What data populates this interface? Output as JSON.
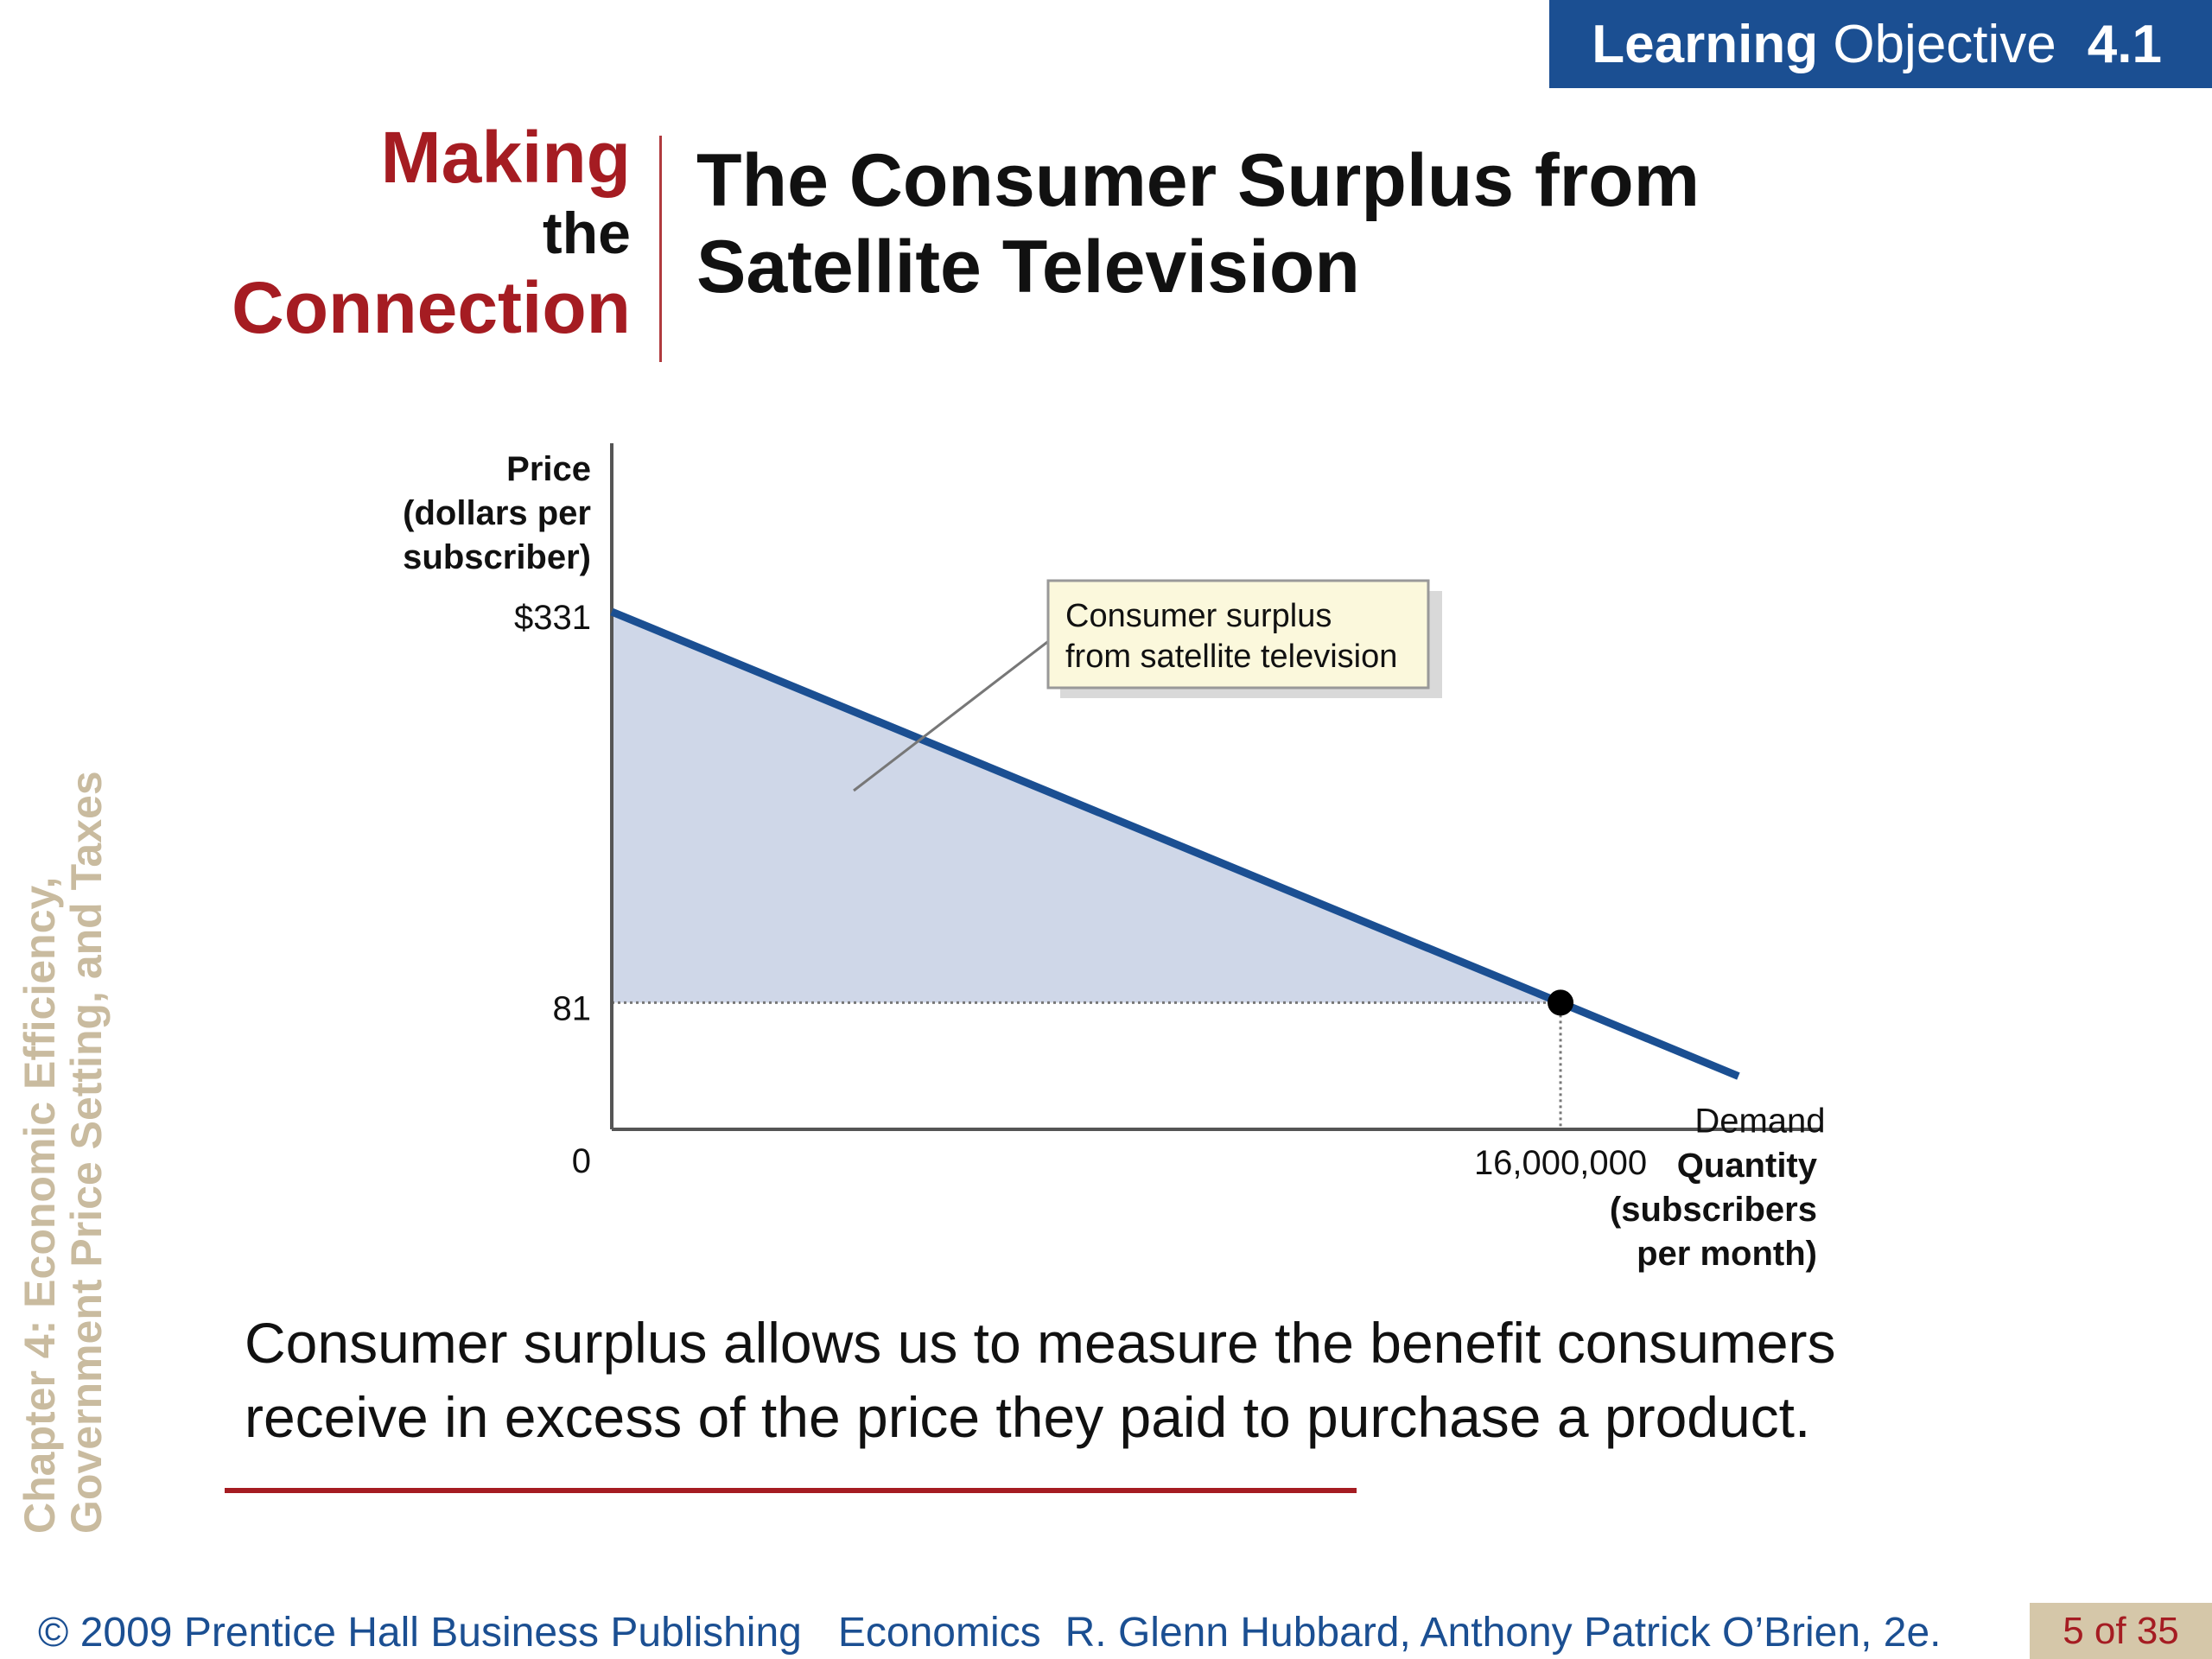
{
  "header": {
    "learning_objective_bold": "Learning",
    "learning_objective_rest": "Objective",
    "learning_objective_number": "4.1"
  },
  "feature": {
    "making": "Making",
    "the": "the",
    "connection": "Connection",
    "title_line1": "The Consumer Surplus from",
    "title_line2": "Satellite Television"
  },
  "sidebar": {
    "chapter_line1": "Chapter 4:  Economic Efficiency,",
    "chapter_line2": "Government Price Setting, and Taxes"
  },
  "chart_data": {
    "type": "area",
    "ylabel_lines": [
      "Price",
      "(dollars per",
      "subscriber)"
    ],
    "xlabel_lines": [
      "Quantity",
      "(subscribers",
      "per month)"
    ],
    "y_ticks": [
      {
        "value": 331,
        "label": "$331"
      },
      {
        "value": 81,
        "label": "81"
      },
      {
        "value": 0,
        "label": "0"
      }
    ],
    "x_ticks": [
      {
        "value": 16000000,
        "label": "16,000,000"
      }
    ],
    "xlim": [
      0,
      20400000
    ],
    "ylim": [
      0,
      436
    ],
    "series": [
      {
        "name": "Demand",
        "points": [
          [
            0,
            331
          ],
          [
            16000000,
            81
          ],
          [
            19000000,
            34
          ]
        ]
      }
    ],
    "equilibrium": {
      "x": 16000000,
      "y": 81
    },
    "shaded_region": {
      "from_x": 0,
      "to_x": 16000000,
      "above_price": 81
    },
    "annotation_lines": [
      "Consumer surplus",
      "from satellite television"
    ],
    "colors": {
      "demand_line": "#1b4f92",
      "surplus_fill": "#cfd7e8",
      "axis": "#555555"
    }
  },
  "body": {
    "text_line1": "Consumer surplus allows us to measure the benefit consumers",
    "text_line2": "receive in excess of the price they paid to purchase a product."
  },
  "footer": {
    "copyright": "© 2009 Prentice Hall Business Publishing",
    "book": "Economics",
    "authors": "R. Glenn Hubbard, Anthony Patrick O’Brien, 2e.",
    "page": "5 of 35"
  }
}
